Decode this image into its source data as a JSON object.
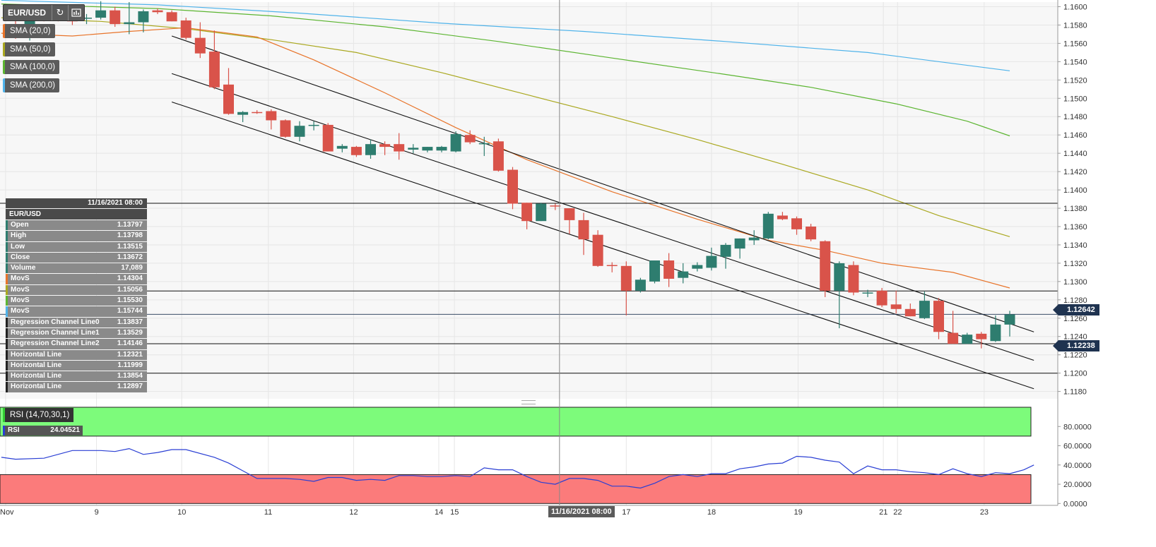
{
  "toolbar": {
    "symbol": "EUR/USD",
    "refresh_icon": "refresh-icon",
    "indicator_icon": "chart-settings-icon"
  },
  "indicators": [
    {
      "label": "SMA (20,0)",
      "color": "#e8742a"
    },
    {
      "label": "SMA (50,0)",
      "color": "#aaa820"
    },
    {
      "label": "SMA (100,0)",
      "color": "#5cb531"
    },
    {
      "label": "SMA (200,0)",
      "color": "#4fb3ea"
    }
  ],
  "data_panel": {
    "date": "11/16/2021 08:00",
    "symbol": "EUR/USD",
    "rows": [
      {
        "label": "Open",
        "value": "1.13797",
        "color": "#2e7d6f"
      },
      {
        "label": "High",
        "value": "1.13798",
        "color": "#2e7d6f"
      },
      {
        "label": "Low",
        "value": "1.13515",
        "color": "#2e7d6f"
      },
      {
        "label": "Close",
        "value": "1.13672",
        "color": "#2e7d6f"
      },
      {
        "label": "Volume",
        "value": "17,089",
        "color": "#2e7d6f"
      },
      {
        "label": "MovS",
        "value": "1.14304",
        "color": "#e8742a"
      },
      {
        "label": "MovS",
        "value": "1.15056",
        "color": "#aaa820"
      },
      {
        "label": "MovS",
        "value": "1.15530",
        "color": "#5cb531"
      },
      {
        "label": "MovS",
        "value": "1.15744",
        "color": "#4fb3ea"
      },
      {
        "label": "Regression Channel Line0",
        "value": "1.13837",
        "color": "#222222"
      },
      {
        "label": "Regression Channel Line1",
        "value": "1.13529",
        "color": "#222222"
      },
      {
        "label": "Regression Channel Line2",
        "value": "1.14146",
        "color": "#222222"
      },
      {
        "label": "Horizontal Line",
        "value": "1.12321",
        "color": "#222222"
      },
      {
        "label": "Horizontal Line",
        "value": "1.11999",
        "color": "#222222"
      },
      {
        "label": "Horizontal Line",
        "value": "1.13854",
        "color": "#222222"
      },
      {
        "label": "Horizontal Line",
        "value": "1.12897",
        "color": "#222222"
      }
    ]
  },
  "price_tags": {
    "last": "1.12642",
    "line": "1.12238"
  },
  "crosshair_label": "11/16/2021 08:00",
  "rsi": {
    "label": "RSI (14,70,30,1)",
    "value_label": "RSI",
    "value": "24.04521"
  },
  "colors": {
    "bull": "#2e7d6f",
    "bear": "#d9534a",
    "rsi_line": "#2a3fd4",
    "overbought_fill": "#7dfb7b",
    "oversold_fill": "#fb7b7b"
  },
  "chart_data": [
    {
      "type": "candlestick",
      "symbol": "EUR/USD",
      "y_ticks": [
        "1.1600",
        "1.1580",
        "1.1560",
        "1.1540",
        "1.1520",
        "1.1500",
        "1.1480",
        "1.1460",
        "1.1440",
        "1.1420",
        "1.1400",
        "1.1380",
        "1.1360",
        "1.1340",
        "1.1320",
        "1.1300",
        "1.1280",
        "1.1260",
        "1.1240",
        "1.1220",
        "1.1200",
        "1.1180"
      ],
      "ylim": [
        1.1172,
        1.1605
      ],
      "x_ticks": [
        {
          "label": "Nov",
          "index": -0.7
        },
        {
          "label": "9",
          "index": 5.7
        },
        {
          "label": "10",
          "index": 11.7
        },
        {
          "label": "11",
          "index": 17.8
        },
        {
          "label": "12",
          "index": 23.8
        },
        {
          "label": "14",
          "index": 29.8
        },
        {
          "label": "15",
          "index": 30.9
        },
        {
          "label": "17",
          "index": 43.0
        },
        {
          "label": "18",
          "index": 49.0
        },
        {
          "label": "19",
          "index": 55.1
        },
        {
          "label": "21",
          "index": 61.1
        },
        {
          "label": "22",
          "index": 62.1
        },
        {
          "label": "23",
          "index": 68.2
        }
      ],
      "candles": [
        {
          "o": 1.1578,
          "h": 1.1587,
          "l": 1.1565,
          "c": 1.1572
        },
        {
          "o": 1.1568,
          "h": 1.16,
          "l": 1.1563,
          "c": 1.1592
        },
        {
          "o": 1.1592,
          "h": 1.1597,
          "l": 1.1584,
          "c": 1.1588
        },
        {
          "o": 1.159,
          "h": 1.1592,
          "l": 1.1584,
          "c": 1.1589
        },
        {
          "o": 1.1589,
          "h": 1.1591,
          "l": 1.158,
          "c": 1.1584
        },
        {
          "o": 1.1587,
          "h": 1.1592,
          "l": 1.1581,
          "c": 1.1588
        },
        {
          "o": 1.1588,
          "h": 1.1606,
          "l": 1.1586,
          "c": 1.1596
        },
        {
          "o": 1.1596,
          "h": 1.16,
          "l": 1.1578,
          "c": 1.1581
        },
        {
          "o": 1.1581,
          "h": 1.1605,
          "l": 1.157,
          "c": 1.1583
        },
        {
          "o": 1.1583,
          "h": 1.1597,
          "l": 1.1572,
          "c": 1.1595
        },
        {
          "o": 1.1596,
          "h": 1.1598,
          "l": 1.1592,
          "c": 1.1594
        },
        {
          "o": 1.1594,
          "h": 1.1596,
          "l": 1.1584,
          "c": 1.1584
        },
        {
          "o": 1.1585,
          "h": 1.1588,
          "l": 1.1564,
          "c": 1.1566
        },
        {
          "o": 1.1566,
          "h": 1.1583,
          "l": 1.1544,
          "c": 1.1549
        },
        {
          "o": 1.1551,
          "h": 1.1574,
          "l": 1.151,
          "c": 1.1512
        },
        {
          "o": 1.1515,
          "h": 1.1533,
          "l": 1.1482,
          "c": 1.1483
        },
        {
          "o": 1.1482,
          "h": 1.1486,
          "l": 1.1474,
          "c": 1.1485
        },
        {
          "o": 1.1485,
          "h": 1.1487,
          "l": 1.1483,
          "c": 1.1484
        },
        {
          "o": 1.1486,
          "h": 1.1488,
          "l": 1.1466,
          "c": 1.1476
        },
        {
          "o": 1.1476,
          "h": 1.1477,
          "l": 1.1457,
          "c": 1.1458
        },
        {
          "o": 1.1458,
          "h": 1.1475,
          "l": 1.1453,
          "c": 1.147
        },
        {
          "o": 1.147,
          "h": 1.1475,
          "l": 1.1465,
          "c": 1.1471
        },
        {
          "o": 1.1471,
          "h": 1.1473,
          "l": 1.1442,
          "c": 1.1442
        },
        {
          "o": 1.1445,
          "h": 1.145,
          "l": 1.1441,
          "c": 1.1448
        },
        {
          "o": 1.1447,
          "h": 1.1448,
          "l": 1.1436,
          "c": 1.1438
        },
        {
          "o": 1.1438,
          "h": 1.1455,
          "l": 1.1434,
          "c": 1.145
        },
        {
          "o": 1.145,
          "h": 1.1453,
          "l": 1.1438,
          "c": 1.1447
        },
        {
          "o": 1.145,
          "h": 1.1462,
          "l": 1.1433,
          "c": 1.1442
        },
        {
          "o": 1.1444,
          "h": 1.145,
          "l": 1.144,
          "c": 1.1446
        },
        {
          "o": 1.1443,
          "h": 1.1447,
          "l": 1.1441,
          "c": 1.1447
        },
        {
          "o": 1.1443,
          "h": 1.1448,
          "l": 1.1441,
          "c": 1.1447
        },
        {
          "o": 1.1442,
          "h": 1.1464,
          "l": 1.1441,
          "c": 1.1461
        },
        {
          "o": 1.146,
          "h": 1.1465,
          "l": 1.145,
          "c": 1.1452
        },
        {
          "o": 1.1451,
          "h": 1.1458,
          "l": 1.1437,
          "c": 1.1451
        },
        {
          "o": 1.1453,
          "h": 1.1456,
          "l": 1.142,
          "c": 1.1421
        },
        {
          "o": 1.1422,
          "h": 1.1425,
          "l": 1.1379,
          "c": 1.1385
        },
        {
          "o": 1.1386,
          "h": 1.1386,
          "l": 1.1357,
          "c": 1.1366
        },
        {
          "o": 1.1366,
          "h": 1.1386,
          "l": 1.1366,
          "c": 1.1385
        },
        {
          "o": 1.1383,
          "h": 1.1385,
          "l": 1.1378,
          "c": 1.1382
        },
        {
          "o": 1.138,
          "h": 1.138,
          "l": 1.1352,
          "c": 1.1367
        },
        {
          "o": 1.1367,
          "h": 1.1375,
          "l": 1.1329,
          "c": 1.1346
        },
        {
          "o": 1.1351,
          "h": 1.1356,
          "l": 1.1316,
          "c": 1.1317
        },
        {
          "o": 1.1318,
          "h": 1.1321,
          "l": 1.131,
          "c": 1.1317
        },
        {
          "o": 1.1317,
          "h": 1.1322,
          "l": 1.1263,
          "c": 1.129
        },
        {
          "o": 1.129,
          "h": 1.1304,
          "l": 1.1288,
          "c": 1.1302
        },
        {
          "o": 1.13,
          "h": 1.1323,
          "l": 1.1298,
          "c": 1.1323
        },
        {
          "o": 1.1323,
          "h": 1.1331,
          "l": 1.1294,
          "c": 1.1303
        },
        {
          "o": 1.1304,
          "h": 1.132,
          "l": 1.1298,
          "c": 1.1311
        },
        {
          "o": 1.1314,
          "h": 1.1321,
          "l": 1.1311,
          "c": 1.1318
        },
        {
          "o": 1.1315,
          "h": 1.1337,
          "l": 1.1312,
          "c": 1.1328
        },
        {
          "o": 1.1327,
          "h": 1.1342,
          "l": 1.1314,
          "c": 1.134
        },
        {
          "o": 1.1336,
          "h": 1.1347,
          "l": 1.1325,
          "c": 1.1347
        },
        {
          "o": 1.1345,
          "h": 1.1356,
          "l": 1.134,
          "c": 1.1348
        },
        {
          "o": 1.1347,
          "h": 1.1376,
          "l": 1.1346,
          "c": 1.1374
        },
        {
          "o": 1.1372,
          "h": 1.1376,
          "l": 1.1367,
          "c": 1.1368
        },
        {
          "o": 1.1369,
          "h": 1.1371,
          "l": 1.1351,
          "c": 1.1357
        },
        {
          "o": 1.136,
          "h": 1.1363,
          "l": 1.1344,
          "c": 1.1346
        },
        {
          "o": 1.1344,
          "h": 1.1345,
          "l": 1.1283,
          "c": 1.129
        },
        {
          "o": 1.129,
          "h": 1.1322,
          "l": 1.1249,
          "c": 1.132
        },
        {
          "o": 1.1318,
          "h": 1.1322,
          "l": 1.1285,
          "c": 1.1288
        },
        {
          "o": 1.1288,
          "h": 1.1291,
          "l": 1.1283,
          "c": 1.1288
        },
        {
          "o": 1.129,
          "h": 1.1293,
          "l": 1.1272,
          "c": 1.1274
        },
        {
          "o": 1.1275,
          "h": 1.129,
          "l": 1.1265,
          "c": 1.127
        },
        {
          "o": 1.127,
          "h": 1.1276,
          "l": 1.1262,
          "c": 1.1262
        },
        {
          "o": 1.126,
          "h": 1.1289,
          "l": 1.1259,
          "c": 1.1279
        },
        {
          "o": 1.1279,
          "h": 1.1282,
          "l": 1.1237,
          "c": 1.1245
        },
        {
          "o": 1.1244,
          "h": 1.1268,
          "l": 1.1232,
          "c": 1.1232
        },
        {
          "o": 1.1232,
          "h": 1.1244,
          "l": 1.1232,
          "c": 1.1242
        },
        {
          "o": 1.1243,
          "h": 1.1245,
          "l": 1.1227,
          "c": 1.1237
        },
        {
          "o": 1.1235,
          "h": 1.1263,
          "l": 1.1234,
          "c": 1.1253
        },
        {
          "o": 1.1253,
          "h": 1.1268,
          "l": 1.124,
          "c": 1.1264
        }
      ],
      "sma_20": [
        [
          -1,
          1.1571
        ],
        [
          4,
          1.1568
        ],
        [
          8,
          1.1573
        ],
        [
          12,
          1.1577
        ],
        [
          17,
          1.1567
        ],
        [
          21,
          1.1542
        ],
        [
          26,
          1.1506
        ],
        [
          31,
          1.1468
        ],
        [
          36,
          1.1433
        ],
        [
          42,
          1.1398
        ],
        [
          48,
          1.1368
        ],
        [
          53,
          1.1345
        ],
        [
          57,
          1.1334
        ],
        [
          61,
          1.132
        ],
        [
          66,
          1.131
        ],
        [
          70,
          1.1293
        ]
      ],
      "sma_50": [
        [
          -1,
          1.1588
        ],
        [
          6,
          1.1584
        ],
        [
          12,
          1.1576
        ],
        [
          18,
          1.1564
        ],
        [
          24,
          1.155
        ],
        [
          30,
          1.1528
        ],
        [
          36,
          1.1504
        ],
        [
          42,
          1.148
        ],
        [
          48,
          1.1455
        ],
        [
          54,
          1.1428
        ],
        [
          60,
          1.14
        ],
        [
          65,
          1.1372
        ],
        [
          70,
          1.1349
        ]
      ],
      "sma_100": [
        [
          -1,
          1.1603
        ],
        [
          10,
          1.1598
        ],
        [
          18,
          1.159
        ],
        [
          26,
          1.1578
        ],
        [
          34,
          1.1562
        ],
        [
          42,
          1.1544
        ],
        [
          50,
          1.1526
        ],
        [
          56,
          1.1512
        ],
        [
          62,
          1.1494
        ],
        [
          67,
          1.1475
        ],
        [
          70,
          1.1459
        ]
      ],
      "sma_200": [
        [
          -1,
          1.1607
        ],
        [
          10,
          1.1602
        ],
        [
          20,
          1.1593
        ],
        [
          30,
          1.1582
        ],
        [
          40,
          1.1573
        ],
        [
          50,
          1.1562
        ],
        [
          60,
          1.155
        ],
        [
          70,
          1.153
        ]
      ],
      "regression_channel": [
        {
          "x1": 11,
          "y1": 1.1568,
          "x2": 71.7,
          "y2": 1.1245
        },
        {
          "x1": 11,
          "y1": 1.1527,
          "x2": 71.7,
          "y2": 1.1214
        },
        {
          "x1": 11,
          "y1": 1.1496,
          "x2": 71.7,
          "y2": 1.1183
        }
      ],
      "horizontal_lines": [
        1.12321,
        1.11999,
        1.13854,
        1.12897
      ],
      "last_price": 1.12642,
      "crosshair_index": 38.3
    },
    {
      "type": "line",
      "title": "RSI (14,70,30,1)",
      "y_ticks": [
        "80.0000",
        "60.0000",
        "40.0000",
        "20.0000",
        "0.0000"
      ],
      "ylim": [
        0,
        100
      ],
      "overbought": 70,
      "oversold": 30,
      "values": [
        [
          -1,
          48
        ],
        [
          0,
          46
        ],
        [
          2,
          47
        ],
        [
          4,
          55
        ],
        [
          6,
          55
        ],
        [
          7,
          54
        ],
        [
          8,
          57
        ],
        [
          9,
          51
        ],
        [
          10,
          53
        ],
        [
          11,
          56
        ],
        [
          12,
          56
        ],
        [
          14,
          48
        ],
        [
          15,
          42
        ],
        [
          16,
          34
        ],
        [
          17,
          26
        ],
        [
          18,
          26
        ],
        [
          19,
          26
        ],
        [
          20,
          25
        ],
        [
          21,
          23
        ],
        [
          22,
          27
        ],
        [
          23,
          27
        ],
        [
          24,
          24
        ],
        [
          25,
          25
        ],
        [
          26,
          24
        ],
        [
          27,
          29
        ],
        [
          28,
          29
        ],
        [
          29,
          28
        ],
        [
          30,
          28
        ],
        [
          31,
          29
        ],
        [
          32,
          28
        ],
        [
          33,
          37
        ],
        [
          34,
          35
        ],
        [
          35,
          35
        ],
        [
          36,
          28
        ],
        [
          37,
          22
        ],
        [
          38,
          20
        ],
        [
          39,
          26
        ],
        [
          40,
          26
        ],
        [
          41,
          24
        ],
        [
          42,
          18
        ],
        [
          43,
          18
        ],
        [
          44,
          16
        ],
        [
          45,
          21
        ],
        [
          46,
          28
        ],
        [
          47,
          30
        ],
        [
          48,
          28
        ],
        [
          49,
          31
        ],
        [
          50,
          31
        ],
        [
          51,
          36
        ],
        [
          52,
          38
        ],
        [
          53,
          41
        ],
        [
          54,
          42
        ],
        [
          55,
          49
        ],
        [
          56,
          48
        ],
        [
          57,
          45
        ],
        [
          58,
          43
        ],
        [
          59,
          31
        ],
        [
          60,
          39
        ],
        [
          61,
          35
        ],
        [
          62,
          35
        ],
        [
          63,
          33
        ],
        [
          64,
          32
        ],
        [
          65,
          30
        ],
        [
          66,
          36
        ],
        [
          67,
          31
        ],
        [
          68,
          28
        ],
        [
          69,
          32
        ],
        [
          70,
          31
        ],
        [
          71,
          35
        ],
        [
          71.7,
          40
        ]
      ]
    }
  ]
}
